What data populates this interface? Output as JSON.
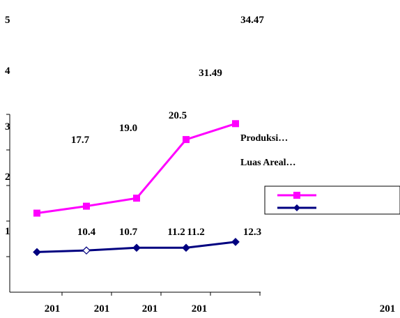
{
  "chart_data": {
    "type": "line",
    "categories": [
      "201",
      "201",
      "201",
      "201",
      ""
    ],
    "extra_x_label": "201",
    "y_tick_labels": [
      "5",
      "4",
      "3",
      "2",
      "1"
    ],
    "series": [
      {
        "name": "Produksi…",
        "color": "#ff00ff",
        "marker": "square",
        "values": [
          17.7,
          19.0,
          20.5,
          31.49,
          34.47
        ],
        "labels": [
          "17.7",
          "19.0",
          "20.5",
          "31.49",
          "34.47"
        ]
      },
      {
        "name": "Luas Areal…",
        "color": "#000080",
        "marker": "diamond",
        "values": [
          10.4,
          10.7,
          11.2,
          11.2,
          12.3
        ],
        "labels": [
          "10.4",
          "10.7",
          "11.2",
          "11.2",
          "12.3"
        ]
      }
    ]
  }
}
